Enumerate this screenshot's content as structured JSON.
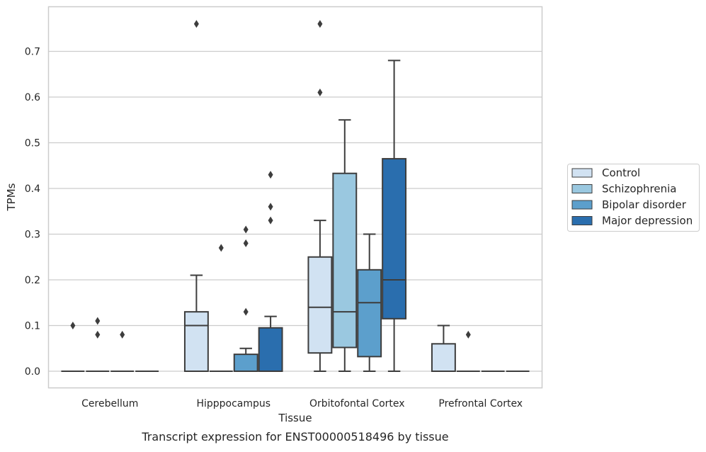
{
  "caption": "Transcript expression for ENST00000518496 by tissue",
  "chart_data": {
    "type": "box",
    "title": "",
    "xlabel": "Tissue",
    "ylabel": "TPMs",
    "ylim": [
      -0.037,
      0.8
    ],
    "yticks": [
      0.0,
      0.1,
      0.2,
      0.3,
      0.4,
      0.5,
      0.6,
      0.7
    ],
    "ytick_labels": [
      "0.0",
      "0.1",
      "0.2",
      "0.3",
      "0.4",
      "0.5",
      "0.6",
      "0.7"
    ],
    "grid": true,
    "legend_position": "right",
    "categories": [
      "Cerebellum",
      "Hipppocampus",
      "Orbitofontal Cortex",
      "Prefrontal Cortex"
    ],
    "series": [
      {
        "name": "Control",
        "color": "#d1e2f2",
        "boxes": [
          {
            "whislo": 0.0,
            "q1": 0.0,
            "med": 0.0,
            "q3": 0.0,
            "whishi": 0.0,
            "fliers": [
              0.1
            ]
          },
          {
            "whislo": 0.0,
            "q1": 0.0,
            "med": 0.1,
            "q3": 0.13,
            "whishi": 0.21,
            "fliers": [
              0.76
            ]
          },
          {
            "whislo": 0.0,
            "q1": 0.04,
            "med": 0.14,
            "q3": 0.25,
            "whishi": 0.33,
            "fliers": [
              0.61,
              0.76
            ]
          },
          {
            "whislo": 0.0,
            "q1": 0.0,
            "med": 0.0,
            "q3": 0.06,
            "whishi": 0.1,
            "fliers": []
          }
        ]
      },
      {
        "name": "Schizophrenia",
        "color": "#9ac8e0",
        "boxes": [
          {
            "whislo": 0.0,
            "q1": 0.0,
            "med": 0.0,
            "q3": 0.0,
            "whishi": 0.0,
            "fliers": [
              0.08,
              0.11
            ]
          },
          {
            "whislo": 0.0,
            "q1": 0.0,
            "med": 0.0,
            "q3": 0.0,
            "whishi": 0.0,
            "fliers": [
              0.27
            ]
          },
          {
            "whislo": 0.0,
            "q1": 0.052,
            "med": 0.13,
            "q3": 0.433,
            "whishi": 0.55,
            "fliers": []
          },
          {
            "whislo": 0.0,
            "q1": 0.0,
            "med": 0.0,
            "q3": 0.0,
            "whishi": 0.0,
            "fliers": [
              0.08
            ]
          }
        ]
      },
      {
        "name": "Bipolar disorder",
        "color": "#5c9fcc",
        "boxes": [
          {
            "whislo": 0.0,
            "q1": 0.0,
            "med": 0.0,
            "q3": 0.0,
            "whishi": 0.0,
            "fliers": [
              0.08
            ]
          },
          {
            "whislo": 0.0,
            "q1": 0.0,
            "med": 0.0,
            "q3": 0.037,
            "whishi": 0.05,
            "fliers": [
              0.13,
              0.28,
              0.31
            ]
          },
          {
            "whislo": 0.0,
            "q1": 0.032,
            "med": 0.15,
            "q3": 0.222,
            "whishi": 0.3,
            "fliers": []
          },
          {
            "whislo": 0.0,
            "q1": 0.0,
            "med": 0.0,
            "q3": 0.0,
            "whishi": 0.0,
            "fliers": []
          }
        ]
      },
      {
        "name": "Major depression",
        "color": "#2a6eae",
        "boxes": [
          {
            "whislo": 0.0,
            "q1": 0.0,
            "med": 0.0,
            "q3": 0.0,
            "whishi": 0.0,
            "fliers": []
          },
          {
            "whislo": 0.0,
            "q1": 0.0,
            "med": 0.0,
            "q3": 0.095,
            "whishi": 0.12,
            "fliers": [
              0.33,
              0.36,
              0.43
            ]
          },
          {
            "whislo": 0.0,
            "q1": 0.115,
            "med": 0.2,
            "q3": 0.465,
            "whishi": 0.68,
            "fliers": []
          },
          {
            "whislo": 0.0,
            "q1": 0.0,
            "med": 0.0,
            "q3": 0.0,
            "whishi": 0.0,
            "fliers": []
          }
        ]
      }
    ]
  }
}
